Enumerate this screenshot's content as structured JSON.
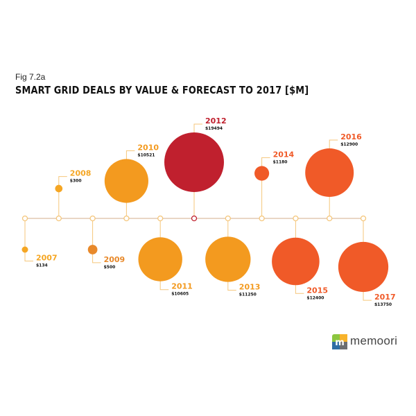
{
  "figure_label": "Fig 7.2a",
  "title": "SMART GRID DEALS BY VALUE & FORECAST TO 2017 [$M]",
  "logo": {
    "text": "memoori",
    "icon": "memoori-logo-icon"
  },
  "colors": {
    "axis": "#e2c9b2",
    "connector": "#f5c67a",
    "2007": "#f5a623",
    "2008": "#f5a623",
    "2009": "#e8892a",
    "2010": "#f39a1f",
    "2011": "#f39a1f",
    "2012": "#c0202e",
    "2013": "#f39a1f",
    "2014": "#f05a28",
    "2015": "#f05a28",
    "2016": "#f05a28",
    "2017": "#f05a28"
  },
  "chart_data": {
    "type": "bubble-timeline",
    "title": "SMART GRID DEALS BY VALUE & FORECAST TO 2017 [$M]",
    "x": [
      "2007",
      "2008",
      "2009",
      "2010",
      "2011",
      "2012",
      "2013",
      "2014",
      "2015",
      "2016",
      "2017"
    ],
    "year_labels": [
      "2007",
      "2008",
      "2009",
      "2010",
      "2011",
      "2012",
      "2013",
      "2014",
      "2015",
      "2016",
      "2017"
    ],
    "value_labels": [
      "$134",
      "$300",
      "$500",
      "$10521",
      "$10605",
      "$19494",
      "$11250",
      "$1180",
      "$12400",
      "$12900",
      "$13750"
    ],
    "values": [
      134,
      300,
      500,
      10521,
      10605,
      19494,
      11250,
      1180,
      12400,
      12900,
      13750
    ],
    "positions": [
      "below",
      "above",
      "below",
      "above",
      "below",
      "above",
      "below",
      "above",
      "below",
      "above",
      "below"
    ],
    "grid": false,
    "legend": "none"
  }
}
